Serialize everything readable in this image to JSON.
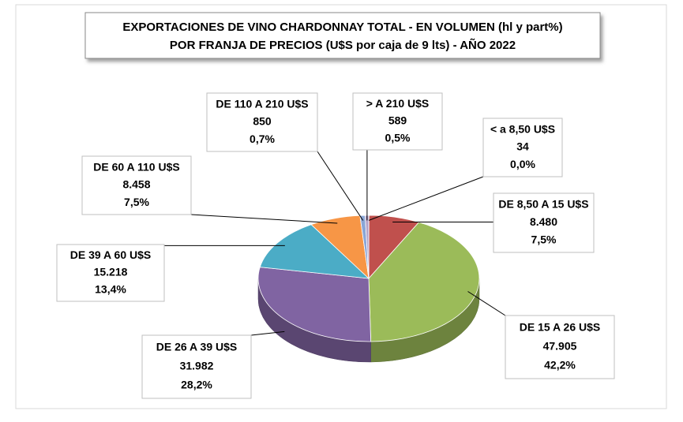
{
  "chart_data": {
    "type": "pie",
    "title": "EXPORTACIONES DE VINO CHARDONNAY TOTAL - EN VOLUMEN (hl y part%)",
    "subtitle": "POR FRANJA DE PRECIOS (U$S por caja de 9 lts) - AÑO 2022",
    "categories": [
      "< a 8,50 U$S",
      "DE 8,50 A 15 U$S",
      "DE 15 A 26 U$S",
      "DE 26 A 39 U$S",
      "DE 39 A 60 U$S",
      "DE 60 A 110 U$S",
      "DE 110 A 210 U$S",
      "> A 210 U$S"
    ],
    "values": [
      34,
      8480,
      47905,
      31982,
      15218,
      8458,
      850,
      589
    ],
    "value_labels": [
      "34",
      "8.480",
      "47.905",
      "31.982",
      "15.218",
      "8.458",
      "850",
      "589"
    ],
    "percentage_labels": [
      "0,0%",
      "7,5%",
      "42,2%",
      "28,2%",
      "13,4%",
      "7,5%",
      "0,7%",
      "0,5%"
    ],
    "colors": [
      "#4f81bd",
      "#c0504d",
      "#9bbb59",
      "#8064a2",
      "#4bacc6",
      "#f79646",
      "#8aa6d6",
      "#b3a2c7"
    ]
  }
}
